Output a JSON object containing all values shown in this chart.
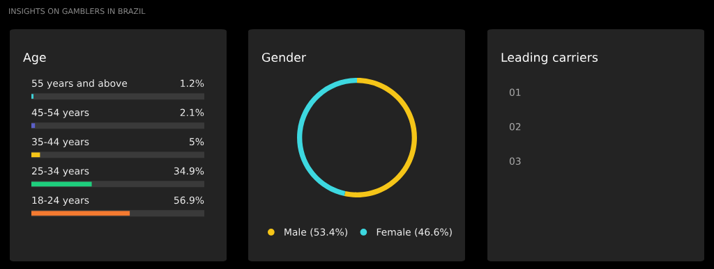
{
  "chart_data": [
    {
      "type": "bar",
      "orientation": "horizontal",
      "title": "Age",
      "annotations": [
        "INSIGHTS ON GAMBLERS IN BRAZIL"
      ],
      "categories": [
        "55 years and above",
        "45-54 years",
        "35-44 years",
        "25-34 years",
        "18-24 years"
      ],
      "values": [
        1.2,
        2.1,
        5,
        34.9,
        56.9
      ],
      "value_labels": [
        "1.2%",
        "2.1%",
        "5%",
        "34.9%",
        "56.9%"
      ],
      "colors": [
        "#3ecfd6",
        "#5b5fc7",
        "#f5c518",
        "#1ecf7d",
        "#f47a30"
      ],
      "xlim": [
        0,
        100
      ]
    },
    {
      "type": "donut",
      "title": "Gender",
      "categories": [
        "Male (53.4%)",
        "Female (46.6%)"
      ],
      "values": [
        53.4,
        46.6
      ],
      "colors": [
        "#f5c518",
        "#3dd8e0"
      ],
      "legend": "bottom"
    },
    {
      "type": "other",
      "title": "Leading carriers",
      "annotations": [
        "01",
        "02",
        "03"
      ]
    }
  ]
}
